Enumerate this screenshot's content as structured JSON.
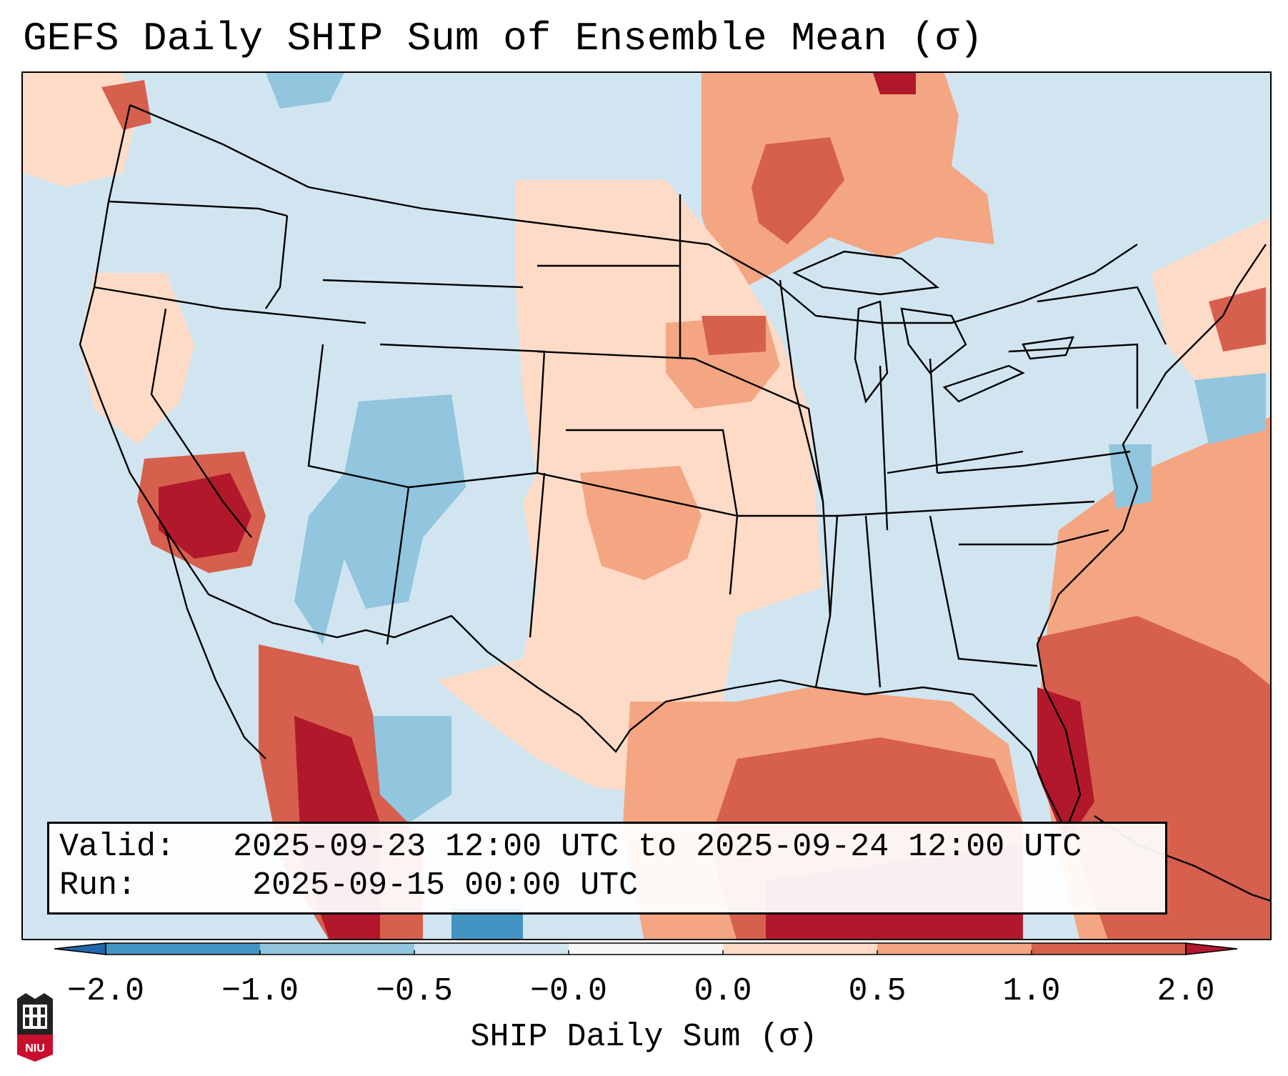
{
  "title": "GEFS Daily SHIP Sum of Ensemble Mean (σ)",
  "info": {
    "valid_label": "Valid:",
    "valid_value": "2025-09-23 12:00 UTC to 2025-09-24 12:00 UTC",
    "run_label": "Run:  ",
    "run_value": "2025-09-15 00:00 UTC"
  },
  "colorbar": {
    "label": "SHIP Daily Sum (σ)",
    "ticks": [
      "−2.0",
      "−1.0",
      "−0.5",
      "−0.0",
      "0.0",
      "0.5",
      "1.0",
      "2.0"
    ],
    "colors": [
      "#4393c3",
      "#92c5de",
      "#d1e5f0",
      "#f7f7f7",
      "#fddbc7",
      "#f4a582",
      "#d6604d"
    ],
    "under_color": "#2166ac",
    "over_color": "#b2182b"
  },
  "map": {
    "ocean_color": "#d1e5f0",
    "border_color": "#000000",
    "region_colors": {
      "neg_strong": "#4393c3",
      "neg": "#92c5de",
      "neutral_neg": "#d1e5f0",
      "pos_weak": "#fddbc7",
      "pos": "#f4a582",
      "pos_strong": "#d6604d",
      "pos_extreme": "#b2182b"
    }
  },
  "logo": {
    "text": "NIU",
    "icon": "niu-logo-icon",
    "color": "#c8102e"
  }
}
